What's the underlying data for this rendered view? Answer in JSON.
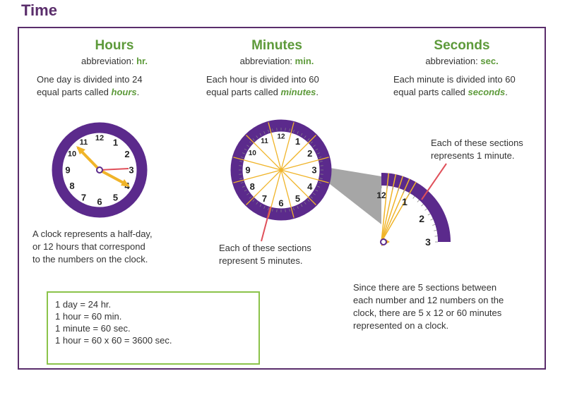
{
  "title": "Time",
  "hours": {
    "heading": "Hours",
    "abbr_label": "abbreviation: ",
    "abbr_value": "hr.",
    "desc_pre": "One day is divided into 24",
    "desc_mid": "equal parts called ",
    "desc_em": "hours",
    "desc_end": ".",
    "note_lines": [
      "A clock represents a half-day,",
      "or 12 hours that correspond",
      "to the numbers on the clock."
    ]
  },
  "minutes": {
    "heading": "Minutes",
    "abbr_label": "abbreviation: ",
    "abbr_value": "min.",
    "desc_pre": "Each hour is divided into 60",
    "desc_mid": "equal parts called ",
    "desc_em": "minutes",
    "desc_end": ".",
    "note_lines": [
      "Each of these sections",
      "represent 5 minutes."
    ]
  },
  "seconds": {
    "heading": "Seconds",
    "abbr_label": "abbreviation: ",
    "abbr_value": "sec.",
    "desc_pre": "Each minute is divided into 60",
    "desc_mid": "equal parts called ",
    "desc_em": "seconds",
    "desc_end": ".",
    "note_lines": [
      "Each of these sections",
      "represents 1 minute."
    ]
  },
  "explanation_lines": [
    "Since there are 5 sections between",
    "each number and 12 numbers on the",
    "clock, there are 5 x 12 or 60 minutes",
    "represented on a clock."
  ],
  "conversions": [
    "1 day = 24 hr.",
    "1 hour = 60 min.",
    "1 minute = 60 sec.",
    "",
    "1 hour = 60 x 60 = 3600 sec."
  ],
  "clock_numbers": [
    "12",
    "1",
    "2",
    "3",
    "4",
    "5",
    "6",
    "7",
    "8",
    "9",
    "10",
    "11"
  ],
  "zoom_numbers": [
    "12",
    "1",
    "2",
    "3"
  ],
  "colors": {
    "purple": "#5a2d6b",
    "ring": "#5b2a8c",
    "green": "#5d9a3a",
    "gold": "#f0b429",
    "red": "#e0505a",
    "gray": "#a0a0a0"
  }
}
